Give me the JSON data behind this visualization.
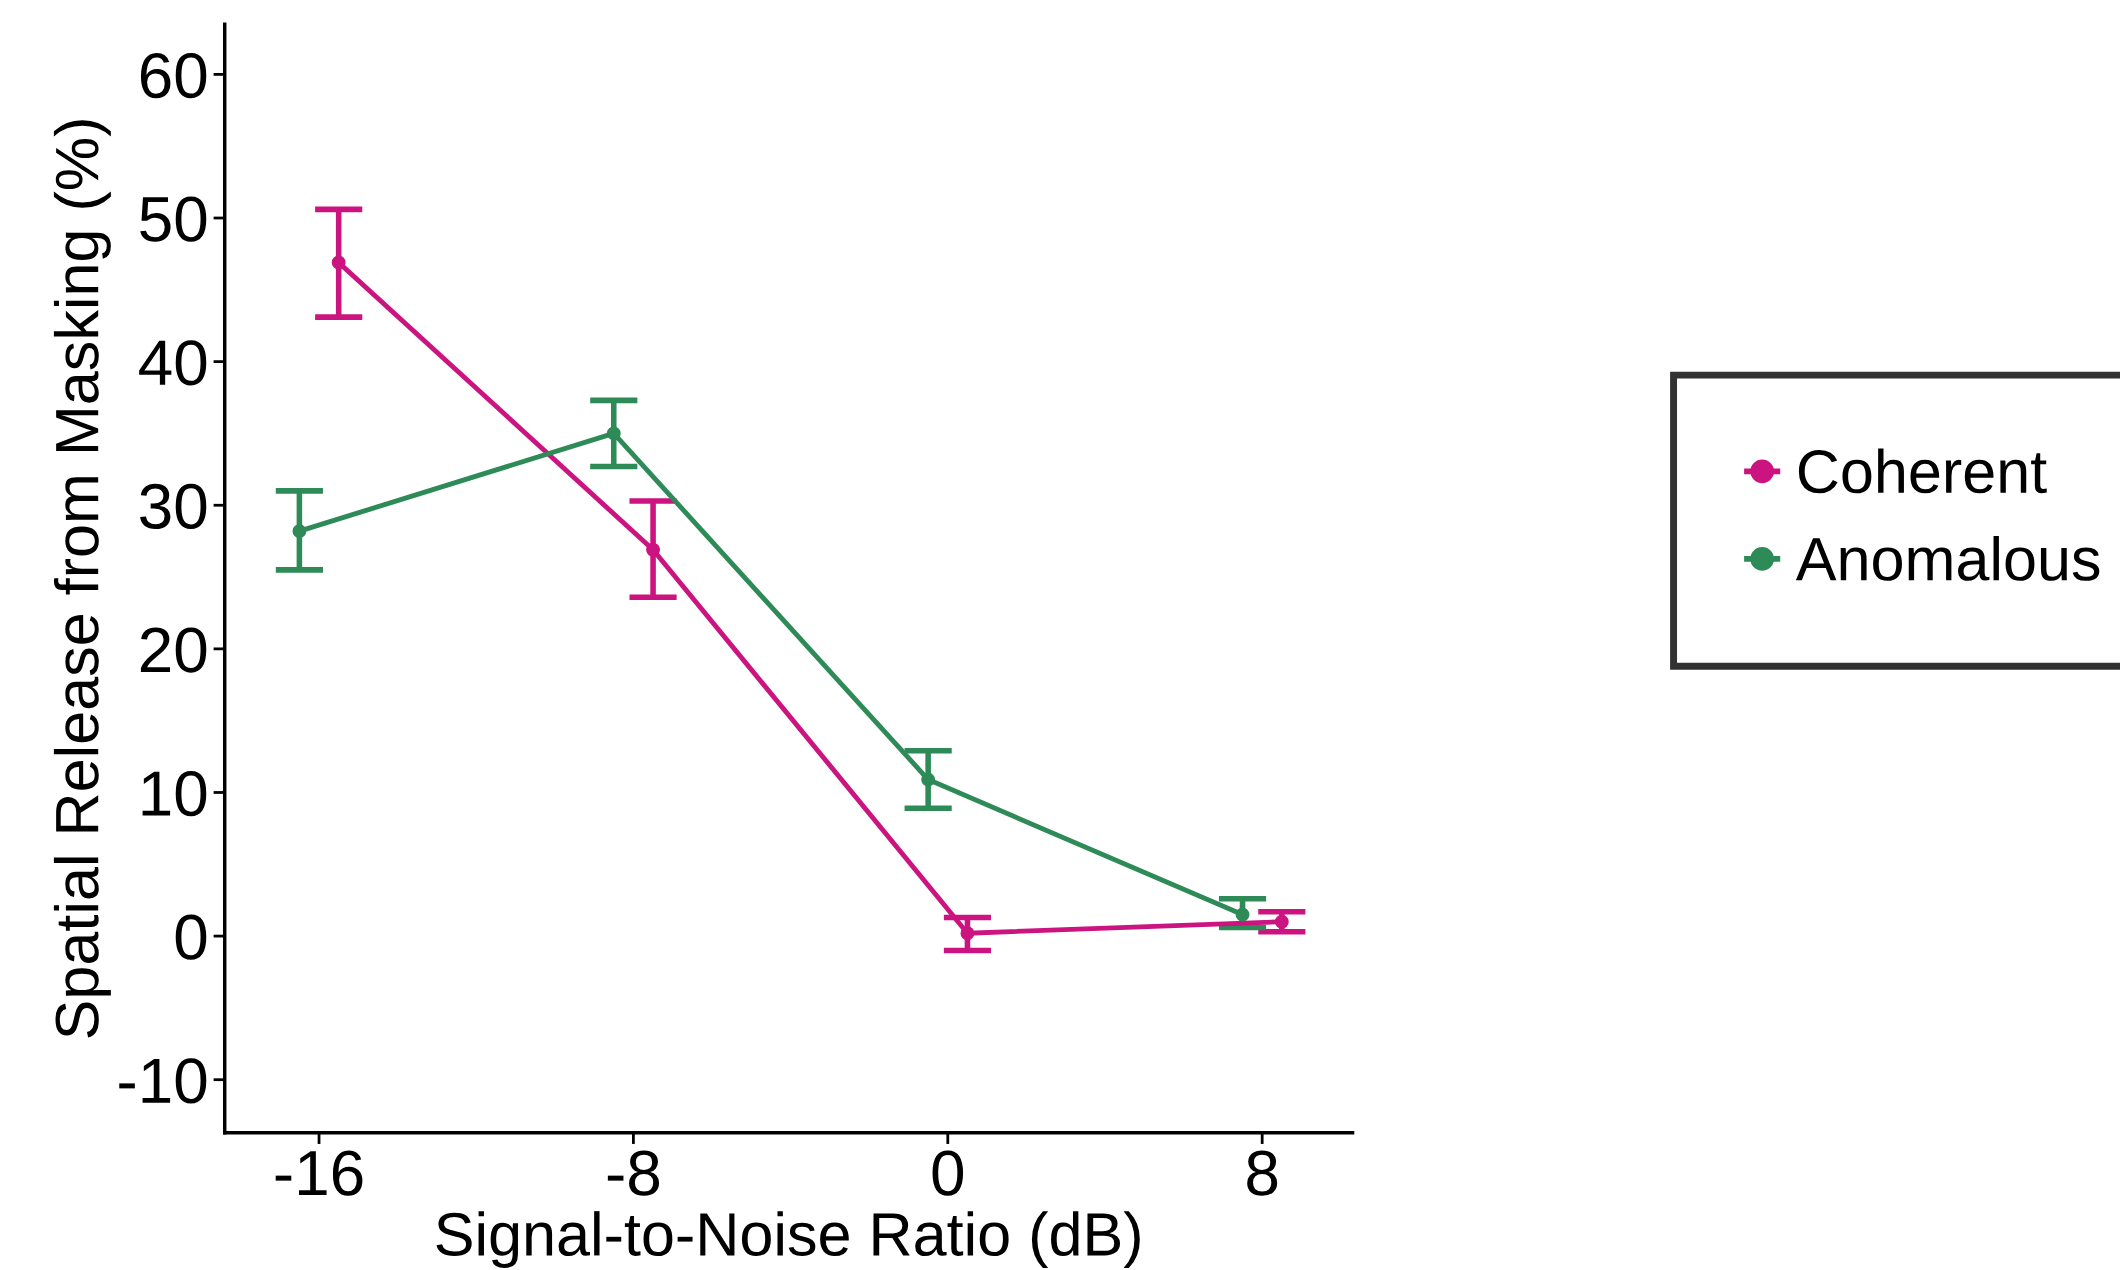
{
  "chart_data": {
    "type": "line",
    "xlabel": "Signal-to-Noise Ratio (dB)",
    "ylabel": "Spatial Release from Masking (%)",
    "xlim": [
      -18.4,
      10.3
    ],
    "ylim": [
      -13.7,
      63.5
    ],
    "xticks": [
      -16,
      -8,
      0,
      8
    ],
    "yticks": [
      -10,
      0,
      10,
      20,
      30,
      40,
      50,
      60
    ],
    "grid": false,
    "legend": "right",
    "marker": "circle",
    "line_style": "solid",
    "series": [
      {
        "name": "Coherent",
        "color": "#cc1480",
        "x": [
          -15.5,
          -7.5,
          0.5,
          8.5
        ],
        "values": [
          46.9,
          26.9,
          0.2,
          1.0
        ],
        "errors": [
          [
            43.1,
            50.6
          ],
          [
            23.6,
            30.3
          ],
          [
            -1.0,
            1.3
          ],
          [
            0.3,
            1.7
          ]
        ]
      },
      {
        "name": "Anomalous",
        "color": "#2e8b57",
        "x": [
          -16.5,
          -8.5,
          -0.5,
          7.5
        ],
        "values": [
          28.2,
          35.0,
          10.9,
          1.5
        ],
        "errors": [
          [
            25.5,
            31.0
          ],
          [
            32.7,
            37.3
          ],
          [
            8.9,
            12.9
          ],
          [
            0.6,
            2.6
          ]
        ]
      }
    ]
  }
}
